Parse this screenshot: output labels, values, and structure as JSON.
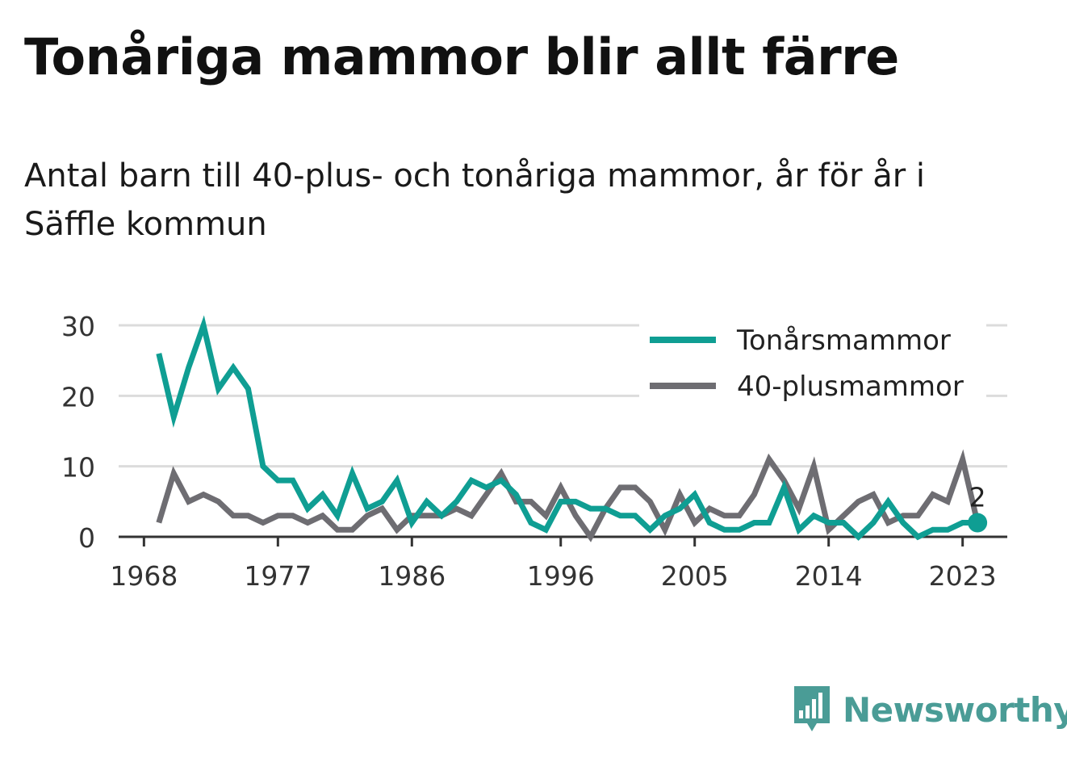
{
  "title": "Tonåriga mammor blir allt färre",
  "subtitle": "Antal barn till 40-plus- och tonåriga mammor, år för år i Säffle kommun",
  "brand": {
    "name": "Newsworthy",
    "icon": "bar-chart-speech-bubble-icon",
    "color": "#4a9c96"
  },
  "chart_data": {
    "type": "line",
    "x": [
      1969,
      1970,
      1971,
      1972,
      1973,
      1974,
      1975,
      1976,
      1977,
      1978,
      1979,
      1980,
      1981,
      1982,
      1983,
      1984,
      1985,
      1986,
      1987,
      1988,
      1989,
      1990,
      1991,
      1992,
      1993,
      1994,
      1995,
      1996,
      1997,
      1998,
      1999,
      2000,
      2001,
      2002,
      2003,
      2004,
      2005,
      2006,
      2007,
      2008,
      2009,
      2010,
      2011,
      2012,
      2013,
      2014,
      2015,
      2016,
      2017,
      2018,
      2019,
      2020,
      2021,
      2022,
      2023,
      2024
    ],
    "x_ticks": [
      1968,
      1977,
      1986,
      1996,
      2005,
      2014,
      2023
    ],
    "y_ticks": [
      0,
      10,
      20,
      30
    ],
    "ylim": [
      0,
      30
    ],
    "grid": true,
    "legend_position": "top-right",
    "series": [
      {
        "name": "Tonårsmammor",
        "color": "#0f9e93",
        "values": [
          26,
          17,
          24,
          30,
          21,
          24,
          21,
          10,
          8,
          8,
          4,
          6,
          3,
          9,
          4,
          5,
          8,
          2,
          5,
          3,
          5,
          8,
          7,
          8,
          6,
          2,
          1,
          5,
          5,
          4,
          4,
          3,
          3,
          1,
          3,
          4,
          6,
          2,
          1,
          1,
          2,
          2,
          7,
          1,
          3,
          2,
          2,
          0,
          2,
          5,
          2,
          0,
          1,
          1,
          2,
          2
        ]
      },
      {
        "name": "40-plusmammor",
        "color": "#6e6d72",
        "values": [
          2,
          9,
          5,
          6,
          5,
          3,
          3,
          2,
          3,
          3,
          2,
          3,
          1,
          1,
          3,
          4,
          1,
          3,
          3,
          3,
          4,
          3,
          6,
          9,
          5,
          5,
          3,
          7,
          3,
          0,
          4,
          7,
          7,
          5,
          1,
          6,
          2,
          4,
          3,
          3,
          6,
          11,
          8,
          4,
          10,
          1,
          3,
          5,
          6,
          2,
          3,
          3,
          6,
          5,
          11,
          2
        ]
      }
    ],
    "end_label": {
      "series": "Tonårsmammor",
      "value": "2"
    }
  }
}
